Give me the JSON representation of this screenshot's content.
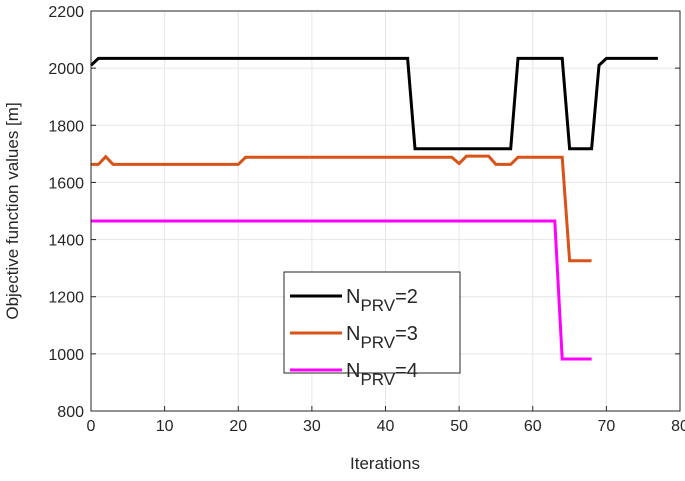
{
  "chart_data": {
    "type": "line",
    "title": "",
    "xlabel": "Iterations",
    "ylabel": "Objective function values [m]",
    "xlim": [
      0,
      80
    ],
    "ylim": [
      800,
      2200
    ],
    "xticks": [
      0,
      10,
      20,
      30,
      40,
      50,
      60,
      70,
      80
    ],
    "yticks": [
      800,
      1000,
      1200,
      1400,
      1600,
      1800,
      2000,
      2200
    ],
    "grid": true,
    "legend_position": "bottom-center",
    "series": [
      {
        "name": "N_PRV=2",
        "label_base": "N",
        "label_sub": "PRV",
        "label_suffix": "=2",
        "color": "#000000",
        "x": [
          0,
          1,
          43,
          44,
          57,
          58,
          64,
          65,
          68,
          69,
          70,
          77
        ],
        "y": [
          2010,
          2034,
          2034,
          1718,
          1718,
          2034,
          2034,
          1718,
          1718,
          2010,
          2034,
          2034
        ]
      },
      {
        "name": "N_PRV=3",
        "label_base": "N",
        "label_sub": "PRV",
        "label_suffix": "=3",
        "color": "#D95319",
        "x": [
          0,
          1,
          2,
          3,
          20,
          21,
          49,
          50,
          51,
          54,
          55,
          57,
          58,
          64,
          65,
          68
        ],
        "y": [
          1663,
          1663,
          1690,
          1663,
          1663,
          1688,
          1688,
          1666,
          1692,
          1692,
          1663,
          1663,
          1688,
          1688,
          1326,
          1326
        ]
      },
      {
        "name": "N_PRV=4",
        "label_base": "N",
        "label_sub": "PRV",
        "label_suffix": "=4",
        "color": "#FF00FF",
        "x": [
          0,
          63,
          64,
          68
        ],
        "y": [
          1465,
          1465,
          982,
          982
        ]
      }
    ]
  }
}
